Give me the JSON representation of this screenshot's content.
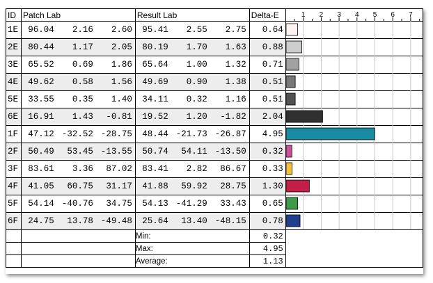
{
  "headers": {
    "id": "ID",
    "patch": "Patch Lab",
    "result": "Result Lab",
    "delta": "Delta-E"
  },
  "axis_ticks": [
    "1",
    "2",
    "3",
    "4",
    "5",
    "6",
    "7"
  ],
  "rows": [
    {
      "id": "1E",
      "patch": [
        "96.04",
        "2.16",
        "2.60"
      ],
      "result": [
        "95.41",
        "2.55",
        "2.75"
      ],
      "de": "0.64",
      "color": "#fdf4f2"
    },
    {
      "id": "2E",
      "patch": [
        "80.44",
        "1.17",
        "2.05"
      ],
      "result": [
        "80.19",
        "1.70",
        "1.63"
      ],
      "de": "0.88",
      "color": "#cccccc"
    },
    {
      "id": "3E",
      "patch": [
        "65.52",
        "0.69",
        "1.86"
      ],
      "result": [
        "65.64",
        "1.00",
        "1.32"
      ],
      "de": "0.71",
      "color": "#a1a1a1"
    },
    {
      "id": "4E",
      "patch": [
        "49.62",
        "0.58",
        "1.56"
      ],
      "result": [
        "49.69",
        "0.90",
        "1.38"
      ],
      "de": "0.51",
      "color": "#787878"
    },
    {
      "id": "5E",
      "patch": [
        "33.55",
        "0.35",
        "1.40"
      ],
      "result": [
        "34.11",
        "0.32",
        "1.16"
      ],
      "de": "0.51",
      "color": "#525252"
    },
    {
      "id": "6E",
      "patch": [
        "16.91",
        "1.43",
        "-0.81"
      ],
      "result": [
        "19.52",
        "1.20",
        "-1.82"
      ],
      "de": "2.04",
      "color": "#303030"
    },
    {
      "id": "1F",
      "patch": [
        "47.12",
        "-32.52",
        "-28.75"
      ],
      "result": [
        "48.44",
        "-21.73",
        "-26.87"
      ],
      "de": "4.95",
      "color": "#1a8ba0"
    },
    {
      "id": "2F",
      "patch": [
        "50.49",
        "53.45",
        "-13.55"
      ],
      "result": [
        "50.74",
        "54.11",
        "-13.50"
      ],
      "de": "0.32",
      "color": "#c9509a"
    },
    {
      "id": "3F",
      "patch": [
        "83.61",
        "3.36",
        "87.02"
      ],
      "result": [
        "83.41",
        "2.82",
        "86.67"
      ],
      "de": "0.33",
      "color": "#f2c233"
    },
    {
      "id": "4F",
      "patch": [
        "41.05",
        "60.75",
        "31.17"
      ],
      "result": [
        "41.88",
        "59.92",
        "28.75"
      ],
      "de": "1.30",
      "color": "#c21e48"
    },
    {
      "id": "5F",
      "patch": [
        "54.14",
        "-40.76",
        "34.75"
      ],
      "result": [
        "54.13",
        "-41.29",
        "33.43"
      ],
      "de": "0.65",
      "color": "#3e9a48"
    },
    {
      "id": "6F",
      "patch": [
        "24.75",
        "13.78",
        "-49.48"
      ],
      "result": [
        "25.64",
        "13.40",
        "-48.15"
      ],
      "de": "0.78",
      "color": "#203f8c"
    }
  ],
  "stats": [
    {
      "label": "Min:",
      "value": "0.32"
    },
    {
      "label": "Max:",
      "value": "4.95"
    },
    {
      "label": "Average:",
      "value": "1.13"
    }
  ],
  "chart_data": {
    "type": "bar",
    "categories": [
      "1E",
      "2E",
      "3E",
      "4E",
      "5E",
      "6E",
      "1F",
      "2F",
      "3F",
      "4F",
      "5F",
      "6F"
    ],
    "values": [
      0.64,
      0.88,
      0.71,
      0.51,
      0.51,
      2.04,
      4.95,
      0.32,
      0.33,
      1.3,
      0.65,
      0.78
    ],
    "xlim": [
      0,
      7.5
    ],
    "xticks": [
      1,
      2,
      3,
      4,
      5,
      6,
      7
    ],
    "grid": true,
    "orientation": "horizontal"
  }
}
